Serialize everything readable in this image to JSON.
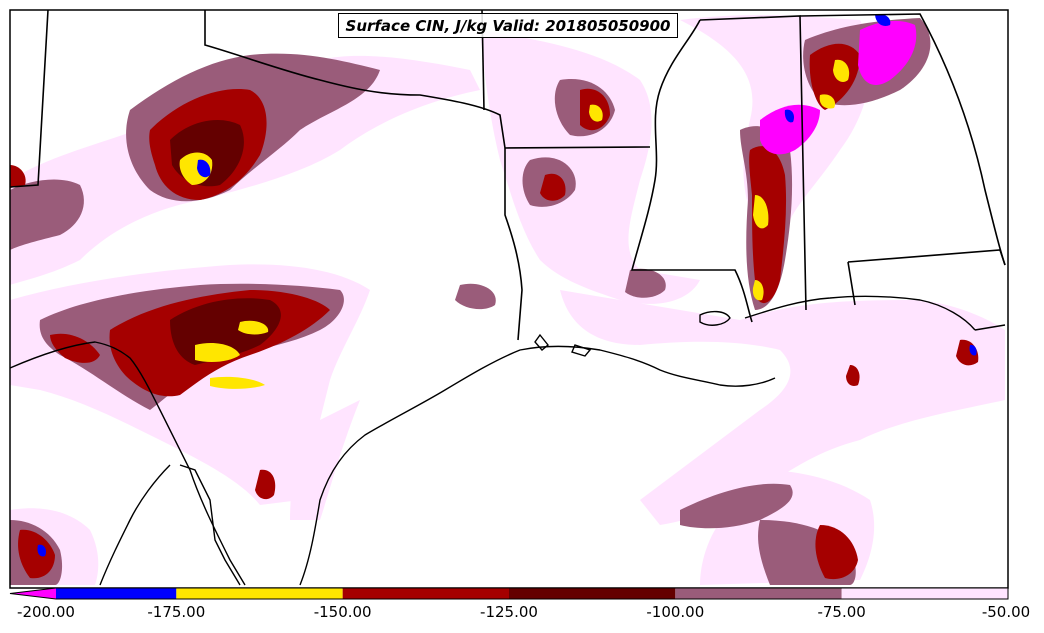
{
  "title": "Surface CIN, J/kg Valid: 201805050900",
  "colorbar": {
    "labels": [
      "-200.00",
      "-175.00",
      "-150.00",
      "-125.00",
      "-100.00",
      "-75.00",
      "-50.00"
    ],
    "colors": [
      "#ff00ff",
      "#0000ff",
      "#ffe600",
      "#a50000",
      "#640000",
      "#9a5c7a",
      "#ffe4ff"
    ]
  },
  "colors": {
    "land_shade": "#ffe4ff",
    "mauve": "#9a5c7a",
    "dark_red": "#640000",
    "red": "#a50000",
    "yellow": "#ffe600",
    "blue": "#0000ff",
    "magenta": "#ff00ff",
    "border": "#000000"
  }
}
